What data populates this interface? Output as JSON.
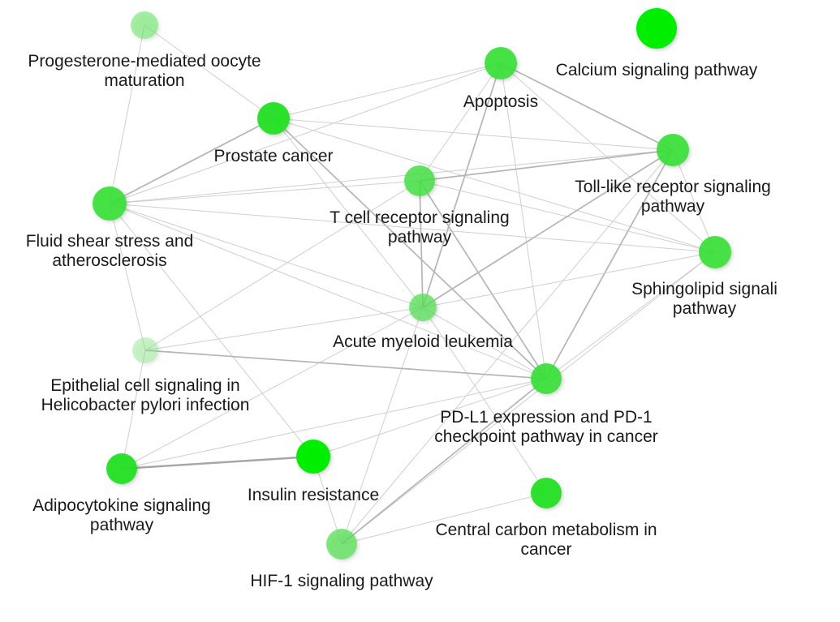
{
  "nodes": [
    {
      "id": "progesterone",
      "lines": [
        "Progesterone-mediated oocyte",
        "maturation"
      ],
      "color": "#5fe65f",
      "opacity": 0.55
    },
    {
      "id": "calcium",
      "lines": [
        "Calcium signaling pathway"
      ],
      "color": "#00ee00",
      "opacity": 1.0
    },
    {
      "id": "apoptosis",
      "lines": [
        "Apoptosis"
      ],
      "color": "#33e033",
      "opacity": 0.9
    },
    {
      "id": "prostate",
      "lines": [
        "Prostate cancer"
      ],
      "color": "#22e022",
      "opacity": 0.95
    },
    {
      "id": "toll",
      "lines": [
        "Toll-like receptor signaling",
        "pathway"
      ],
      "color": "#33e033",
      "opacity": 0.9
    },
    {
      "id": "tcell",
      "lines": [
        "T cell receptor signaling",
        "pathway"
      ],
      "color": "#44e044",
      "opacity": 0.85
    },
    {
      "id": "fluid",
      "lines": [
        "Fluid shear stress and",
        "atherosclerosis"
      ],
      "color": "#33e033",
      "opacity": 0.9
    },
    {
      "id": "sphingo",
      "lines": [
        "Sphingolipid signali",
        "pathway"
      ],
      "color": "#33e033",
      "opacity": 0.9
    },
    {
      "id": "aml",
      "lines": [
        "Acute myeloid leukemia"
      ],
      "color": "#55e055",
      "opacity": 0.75
    },
    {
      "id": "epithelial",
      "lines": [
        "Epithelial cell signaling in",
        "Helicobacter pylori infection"
      ],
      "color": "#8fe88f",
      "opacity": 0.45
    },
    {
      "id": "pdl1",
      "lines": [
        "PD-L1 expression and PD-1",
        "checkpoint pathway in cancer"
      ],
      "color": "#33e033",
      "opacity": 0.9
    },
    {
      "id": "adipo",
      "lines": [
        "Adipocytokine signaling",
        "pathway"
      ],
      "color": "#22e022",
      "opacity": 0.95
    },
    {
      "id": "insulin",
      "lines": [
        "Insulin resistance"
      ],
      "color": "#00ee00",
      "opacity": 1.0
    },
    {
      "id": "central",
      "lines": [
        "Central carbon metabolism in",
        "cancer"
      ],
      "color": "#22e022",
      "opacity": 0.95
    },
    {
      "id": "hif1",
      "lines": [
        "HIF-1 signaling pathway"
      ],
      "color": "#55e055",
      "opacity": 0.75
    }
  ],
  "edges": [
    {
      "from": "progesterone",
      "to": "prostate",
      "weight": 1
    },
    {
      "from": "progesterone",
      "to": "fluid",
      "weight": 1
    },
    {
      "from": "prostate",
      "to": "fluid",
      "weight": 2
    },
    {
      "from": "prostate",
      "to": "apoptosis",
      "weight": 1
    },
    {
      "from": "prostate",
      "to": "toll",
      "weight": 1
    },
    {
      "from": "prostate",
      "to": "sphingo",
      "weight": 1
    },
    {
      "from": "prostate",
      "to": "aml",
      "weight": 1
    },
    {
      "from": "prostate",
      "to": "pdl1",
      "weight": 2
    },
    {
      "from": "apoptosis",
      "to": "fluid",
      "weight": 1
    },
    {
      "from": "apoptosis",
      "to": "toll",
      "weight": 2
    },
    {
      "from": "apoptosis",
      "to": "tcell",
      "weight": 1
    },
    {
      "from": "apoptosis",
      "to": "aml",
      "weight": 2
    },
    {
      "from": "apoptosis",
      "to": "pdl1",
      "weight": 1
    },
    {
      "from": "apoptosis",
      "to": "sphingo",
      "weight": 1
    },
    {
      "from": "fluid",
      "to": "toll",
      "weight": 1
    },
    {
      "from": "fluid",
      "to": "tcell",
      "weight": 1
    },
    {
      "from": "fluid",
      "to": "sphingo",
      "weight": 1
    },
    {
      "from": "fluid",
      "to": "aml",
      "weight": 1
    },
    {
      "from": "fluid",
      "to": "pdl1",
      "weight": 1
    },
    {
      "from": "fluid",
      "to": "epithelial",
      "weight": 1
    },
    {
      "from": "fluid",
      "to": "insulin",
      "weight": 1
    },
    {
      "from": "tcell",
      "to": "toll",
      "weight": 2
    },
    {
      "from": "tcell",
      "to": "aml",
      "weight": 2
    },
    {
      "from": "tcell",
      "to": "pdl1",
      "weight": 2
    },
    {
      "from": "tcell",
      "to": "sphingo",
      "weight": 1
    },
    {
      "from": "tcell",
      "to": "epithelial",
      "weight": 1
    },
    {
      "from": "toll",
      "to": "aml",
      "weight": 2
    },
    {
      "from": "toll",
      "to": "pdl1",
      "weight": 2
    },
    {
      "from": "toll",
      "to": "sphingo",
      "weight": 1
    },
    {
      "from": "toll",
      "to": "hif1",
      "weight": 1
    },
    {
      "from": "sphingo",
      "to": "aml",
      "weight": 1
    },
    {
      "from": "sphingo",
      "to": "pdl1",
      "weight": 1
    },
    {
      "from": "sphingo",
      "to": "hif1",
      "weight": 1
    },
    {
      "from": "aml",
      "to": "pdl1",
      "weight": 1
    },
    {
      "from": "aml",
      "to": "epithelial",
      "weight": 1
    },
    {
      "from": "aml",
      "to": "hif1",
      "weight": 1
    },
    {
      "from": "aml",
      "to": "adipo",
      "weight": 1
    },
    {
      "from": "aml",
      "to": "central",
      "weight": 1
    },
    {
      "from": "epithelial",
      "to": "pdl1",
      "weight": 2
    },
    {
      "from": "epithelial",
      "to": "adipo",
      "weight": 1
    },
    {
      "from": "adipo",
      "to": "insulin",
      "weight": 3
    },
    {
      "from": "adipo",
      "to": "pdl1",
      "weight": 1
    },
    {
      "from": "insulin",
      "to": "pdl1",
      "weight": 1
    },
    {
      "from": "insulin",
      "to": "hif1",
      "weight": 1
    },
    {
      "from": "hif1",
      "to": "pdl1",
      "weight": 2
    },
    {
      "from": "hif1",
      "to": "central",
      "weight": 1
    }
  ]
}
